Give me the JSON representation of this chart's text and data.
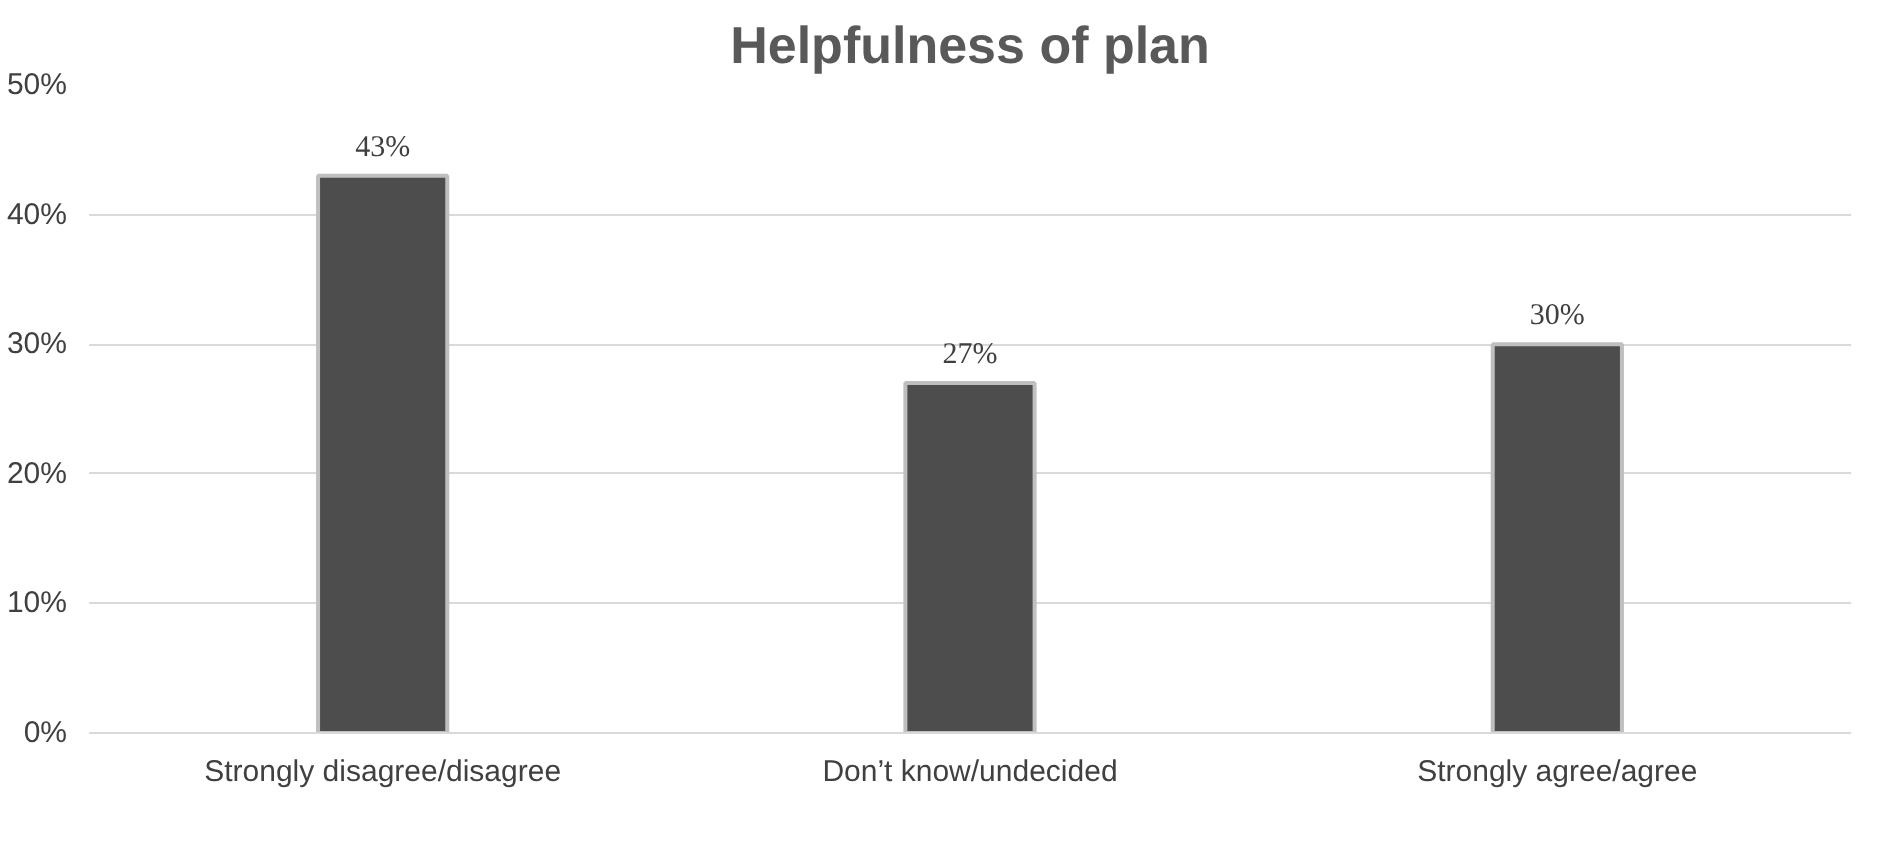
{
  "chart_data": {
    "type": "bar",
    "title": "Helpfulness of plan",
    "categories": [
      "Strongly disagree/disagree",
      "Don’t know/undecided",
      "Strongly agree/agree"
    ],
    "values": [
      43,
      27,
      30
    ],
    "color": "#4d4d4d",
    "ylim": [
      0,
      50
    ],
    "yticks": [
      {
        "value": 0,
        "label": "0%"
      },
      {
        "value": 10,
        "label": "10%"
      },
      {
        "value": 20,
        "label": "20%"
      },
      {
        "value": 30,
        "label": "30%"
      },
      {
        "value": 40,
        "label": "40%"
      },
      {
        "value": 50,
        "label": "50%"
      }
    ],
    "grid": "y",
    "value_labels": [
      "43%",
      "27%",
      "30%"
    ]
  }
}
